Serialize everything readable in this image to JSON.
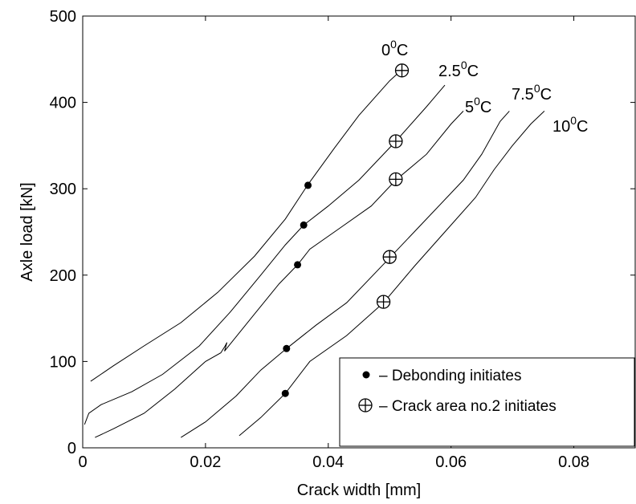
{
  "chart_data": {
    "type": "line",
    "xlabel": "Crack width [mm]",
    "ylabel": "Axle load [kN]",
    "xlim": [
      0,
      0.09
    ],
    "ylim": [
      0,
      500
    ],
    "xticks": [
      "0",
      "0.02",
      "0.04",
      "0.06",
      "0.08"
    ],
    "yticks": [
      "0",
      "100",
      "200",
      "300",
      "400",
      "500"
    ],
    "grid": false,
    "legend_position": "bottom-right",
    "legend": [
      {
        "marker": "filled-dot",
        "label": "– Debonding initiates"
      },
      {
        "marker": "circled-plus",
        "label": "– Crack area no.2 initiates"
      }
    ],
    "series": [
      {
        "name": "0",
        "unit": "C",
        "x": [
          0.0013,
          0.005,
          0.01,
          0.016,
          0.022,
          0.028,
          0.033,
          0.0367,
          0.041,
          0.045,
          0.05,
          0.052
        ],
        "y": [
          77,
          95,
          118,
          145,
          180,
          222,
          265,
          305,
          347,
          385,
          425,
          438
        ],
        "debonding": [
          0.0367,
          304
        ],
        "crack_area_2": [
          0.052,
          437
        ]
      },
      {
        "name": "2.5",
        "unit": "C",
        "x": [
          0.0003,
          0.001,
          0.003,
          0.008,
          0.013,
          0.019,
          0.024,
          0.029,
          0.033,
          0.036,
          0.04,
          0.045,
          0.051,
          0.056,
          0.059
        ],
        "y": [
          27,
          40,
          50,
          65,
          85,
          118,
          157,
          200,
          235,
          258,
          280,
          310,
          355,
          395,
          420
        ],
        "debonding": [
          0.036,
          258
        ],
        "crack_area_2": [
          0.051,
          355
        ]
      },
      {
        "name": "5",
        "unit": "C",
        "x": [
          0.002,
          0.005,
          0.01,
          0.015,
          0.02,
          0.0225,
          0.0232,
          0.0235,
          0.0231,
          0.024,
          0.028,
          0.032,
          0.035,
          0.037,
          0.042,
          0.047,
          0.051,
          0.056,
          0.06,
          0.062
        ],
        "y": [
          12,
          22,
          40,
          68,
          100,
          110,
          118,
          122,
          112,
          120,
          155,
          190,
          212,
          230,
          255,
          280,
          310,
          340,
          375,
          390
        ],
        "debonding": [
          0.035,
          212
        ],
        "crack_area_2": [
          0.051,
          311
        ]
      },
      {
        "name": "7.5",
        "unit": "C",
        "x": [
          0.016,
          0.02,
          0.025,
          0.029,
          0.0332,
          0.038,
          0.043,
          0.05,
          0.056,
          0.062,
          0.065,
          0.068,
          0.0695
        ],
        "y": [
          12,
          30,
          60,
          90,
          115,
          142,
          168,
          220,
          265,
          310,
          340,
          378,
          390
        ],
        "debonding": [
          0.0332,
          115
        ],
        "crack_area_2": [
          0.05,
          221
        ]
      },
      {
        "name": "10",
        "unit": "C",
        "x": [
          0.0255,
          0.029,
          0.033,
          0.037,
          0.043,
          0.049,
          0.054,
          0.059,
          0.064,
          0.067,
          0.07,
          0.073,
          0.0752
        ],
        "y": [
          14,
          35,
          63,
          100,
          130,
          168,
          210,
          250,
          290,
          322,
          350,
          375,
          390
        ],
        "debonding": [
          0.033,
          63
        ],
        "crack_area_2": [
          0.049,
          169
        ]
      }
    ]
  }
}
